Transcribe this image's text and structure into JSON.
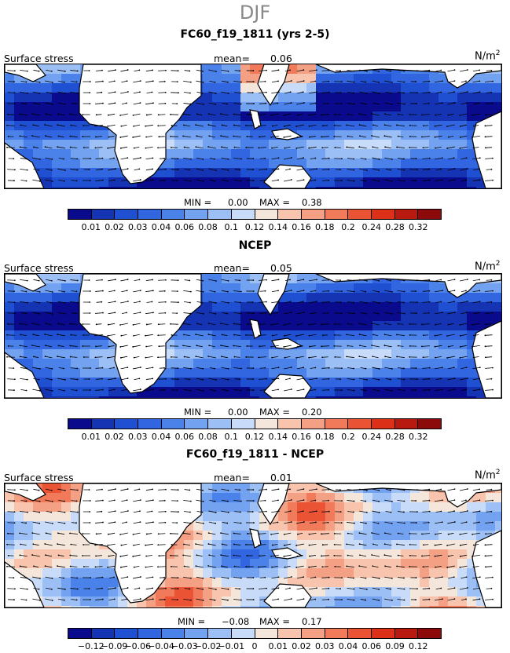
{
  "header": {
    "title": "DJF"
  },
  "panels": [
    {
      "title": "FC60_f19_1811 (yrs 2-5)",
      "field_label": "Surface stress",
      "mean_label": "mean=",
      "mean_value": "0.06",
      "unit": "N/m",
      "unit_sup": "2",
      "min_label": "MIN =",
      "min_value": "0.00",
      "max_label": "MAX =",
      "max_value": "0.38",
      "scale": "abs"
    },
    {
      "title": "NCEP",
      "field_label": "Surface stress",
      "mean_label": "mean=",
      "mean_value": "0.05",
      "unit": "N/m",
      "unit_sup": "2",
      "min_label": "MIN =",
      "min_value": "0.00",
      "max_label": "MAX =",
      "max_value": "0.20",
      "scale": "abs"
    },
    {
      "title": "FC60_f19_1811 - NCEP",
      "field_label": "Surface stress",
      "mean_label": "mean=",
      "mean_value": "0.01",
      "unit": "N/m",
      "unit_sup": "2",
      "min_label": "MIN =",
      "min_value": "−0.08",
      "max_label": "MAX =",
      "max_value": "0.17",
      "scale": "diff"
    }
  ],
  "chart_data": {
    "type": "heatmap",
    "description_season": "DJF",
    "colorbars": {
      "abs": {
        "colors": [
          "#0a0a8c",
          "#1434b4",
          "#2050d2",
          "#3266e0",
          "#4a82ea",
          "#72a2f0",
          "#9cc0f6",
          "#c8dcfa",
          "#f4e6da",
          "#f8c4ae",
          "#f4a084",
          "#f07a5a",
          "#ea5434",
          "#dc3018",
          "#b81a10",
          "#8c0a0a"
        ],
        "ticks": [
          "0.01",
          "0.02",
          "0.03",
          "0.04",
          "0.06",
          "0.08",
          "0.1",
          "0.12",
          "0.14",
          "0.16",
          "0.18",
          "0.2",
          "0.24",
          "0.28",
          "0.32"
        ]
      },
      "diff": {
        "colors": [
          "#0a0a8c",
          "#1434b4",
          "#2050d2",
          "#3266e0",
          "#4a82ea",
          "#72a2f0",
          "#9cc0f6",
          "#c8dcfa",
          "#f4e6da",
          "#f8c4ae",
          "#f4a084",
          "#f07a5a",
          "#ea5434",
          "#dc3018",
          "#b81a10",
          "#8c0a0a"
        ],
        "ticks": [
          "−0.12",
          "−0.09",
          "−0.06",
          "−0.04",
          "−0.03",
          "−0.02",
          "−0.01",
          "0",
          "0.01",
          "0.02",
          "0.03",
          "0.04",
          "0.06",
          "0.09",
          "0.12"
        ]
      }
    }
  }
}
